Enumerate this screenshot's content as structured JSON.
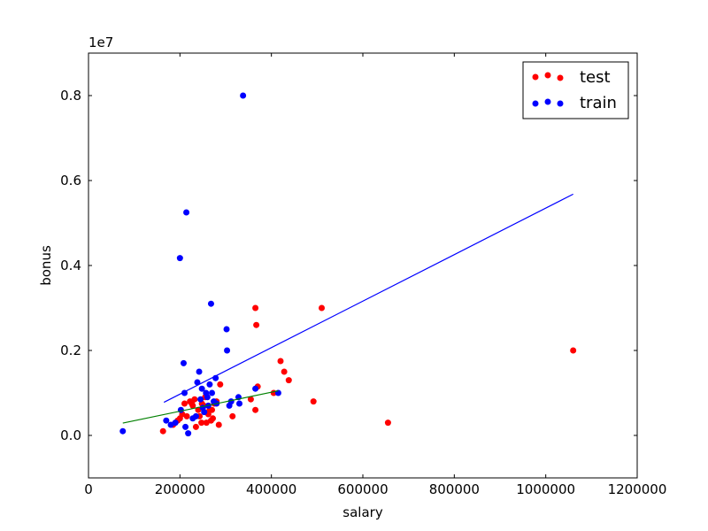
{
  "chart_data": {
    "type": "scatter",
    "xlabel": "salary",
    "ylabel": "bonus",
    "y_offset_label": "1e7",
    "xlim": [
      0,
      1200000
    ],
    "ylim": [
      -1000000,
      9000000
    ],
    "x_ticks": [
      0,
      200000,
      400000,
      600000,
      800000,
      1000000,
      1200000
    ],
    "x_tick_labels": [
      "0",
      "200000",
      "400000",
      "600000",
      "800000",
      "1000000",
      "1200000"
    ],
    "y_ticks": [
      0,
      2000000,
      4000000,
      6000000,
      8000000
    ],
    "y_tick_labels": [
      "0.0",
      "0.2",
      "0.4",
      "0.6",
      "0.8"
    ],
    "grid": false,
    "legend_position": "top-right",
    "series": [
      {
        "name": "test",
        "color": "#ff0000",
        "points": [
          [
            163000,
            100000
          ],
          [
            185000,
            250000
          ],
          [
            195000,
            350000
          ],
          [
            205000,
            500000
          ],
          [
            210000,
            750000
          ],
          [
            215000,
            450000
          ],
          [
            222000,
            800000
          ],
          [
            228000,
            700000
          ],
          [
            232000,
            850000
          ],
          [
            235000,
            200000
          ],
          [
            240000,
            600000
          ],
          [
            243000,
            450000
          ],
          [
            247000,
            300000
          ],
          [
            252000,
            700000
          ],
          [
            255000,
            900000
          ],
          [
            258000,
            300000
          ],
          [
            262000,
            500000
          ],
          [
            265000,
            600000
          ],
          [
            268000,
            350000
          ],
          [
            272000,
            400000
          ],
          [
            275000,
            750000
          ],
          [
            280000,
            800000
          ],
          [
            285000,
            250000
          ],
          [
            288000,
            1200000
          ],
          [
            315000,
            450000
          ],
          [
            355000,
            850000
          ],
          [
            365000,
            3000000
          ],
          [
            365000,
            600000
          ],
          [
            367000,
            2600000
          ],
          [
            370000,
            1150000
          ],
          [
            405000,
            1000000
          ],
          [
            420000,
            1750000
          ],
          [
            428000,
            1500000
          ],
          [
            438000,
            1300000
          ],
          [
            492000,
            800000
          ],
          [
            510000,
            3000000
          ],
          [
            655000,
            300000
          ],
          [
            1060000,
            2000000
          ],
          [
            200000,
            400000
          ],
          [
            226000,
            750000
          ],
          [
            248000,
            750000
          ],
          [
            270000,
            600000
          ]
        ]
      },
      {
        "name": "train",
        "color": "#0000ff",
        "points": [
          [
            75000,
            100000
          ],
          [
            170000,
            350000
          ],
          [
            180000,
            250000
          ],
          [
            190000,
            300000
          ],
          [
            200000,
            4175000
          ],
          [
            202000,
            600000
          ],
          [
            208000,
            1700000
          ],
          [
            210000,
            1000000
          ],
          [
            212000,
            200000
          ],
          [
            214000,
            5250000
          ],
          [
            218000,
            50000
          ],
          [
            228000,
            400000
          ],
          [
            235000,
            450000
          ],
          [
            238000,
            1250000
          ],
          [
            242000,
            1500000
          ],
          [
            245000,
            850000
          ],
          [
            248000,
            1100000
          ],
          [
            250000,
            650000
          ],
          [
            253000,
            550000
          ],
          [
            257000,
            1000000
          ],
          [
            260000,
            900000
          ],
          [
            262000,
            700000
          ],
          [
            265000,
            1200000
          ],
          [
            268000,
            3100000
          ],
          [
            270000,
            1000000
          ],
          [
            274000,
            800000
          ],
          [
            278000,
            1350000
          ],
          [
            280000,
            750000
          ],
          [
            302000,
            2500000
          ],
          [
            303000,
            2000000
          ],
          [
            308000,
            700000
          ],
          [
            312000,
            800000
          ],
          [
            328000,
            900000
          ],
          [
            330000,
            750000
          ],
          [
            338000,
            8000000
          ],
          [
            365000,
            1100000
          ],
          [
            415000,
            1000000
          ]
        ]
      }
    ],
    "fit_lines": [
      {
        "color": "#0000ff",
        "x": [
          165000,
          1060000
        ],
        "y": [
          780000,
          5680000
        ]
      },
      {
        "color": "#008000",
        "x": [
          75000,
          415000
        ],
        "y": [
          290000,
          1050000
        ]
      }
    ]
  }
}
